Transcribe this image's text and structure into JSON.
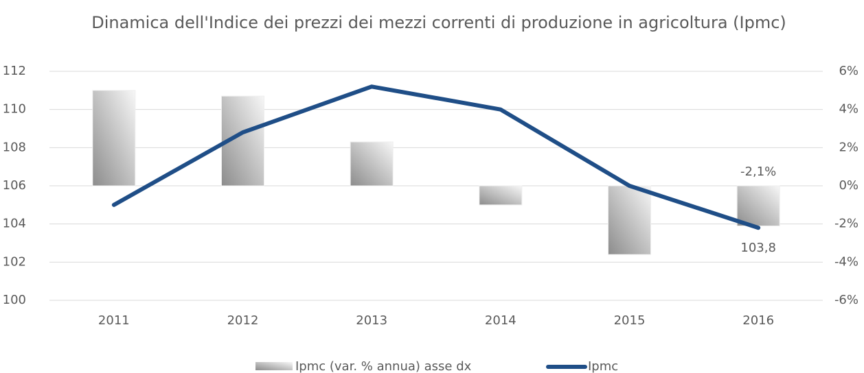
{
  "chart_data": {
    "type": "bar_line",
    "title": "Dinamica dell'Indice dei prezzi dei mezzi correnti di produzione in agricoltura (Ipmc)",
    "categories": [
      "2011",
      "2012",
      "2013",
      "2014",
      "2015",
      "2016"
    ],
    "series": [
      {
        "name": "Ipmc (var. % annua) asse dx",
        "type": "bar",
        "axis": "y2",
        "color": "#8c8c8c",
        "values": [
          5.0,
          4.7,
          2.3,
          -1.0,
          -3.6,
          -2.1
        ],
        "value_labels": [
          null,
          null,
          null,
          null,
          null,
          "-2,1%"
        ]
      },
      {
        "name": "Ipmc",
        "type": "line",
        "axis": "y",
        "color": "#1f4e87",
        "values": [
          105.0,
          108.8,
          111.2,
          110.0,
          106.0,
          103.8
        ],
        "value_labels": [
          null,
          null,
          null,
          null,
          null,
          "103,8"
        ]
      }
    ],
    "ylim": [
      100,
      112
    ],
    "yticks": [
      100,
      102,
      104,
      106,
      108,
      110,
      112
    ],
    "y2lim": [
      -6,
      6
    ],
    "y2ticks": [
      {
        "value": -6,
        "label": "-6%"
      },
      {
        "value": -4,
        "label": "-4%"
      },
      {
        "value": -2,
        "label": "-2%"
      },
      {
        "value": 0,
        "label": "0%"
      },
      {
        "value": 2,
        "label": "2%"
      },
      {
        "value": 4,
        "label": "4%"
      },
      {
        "value": 6,
        "label": "6%"
      }
    ],
    "grid": true,
    "legend": "bottom"
  }
}
